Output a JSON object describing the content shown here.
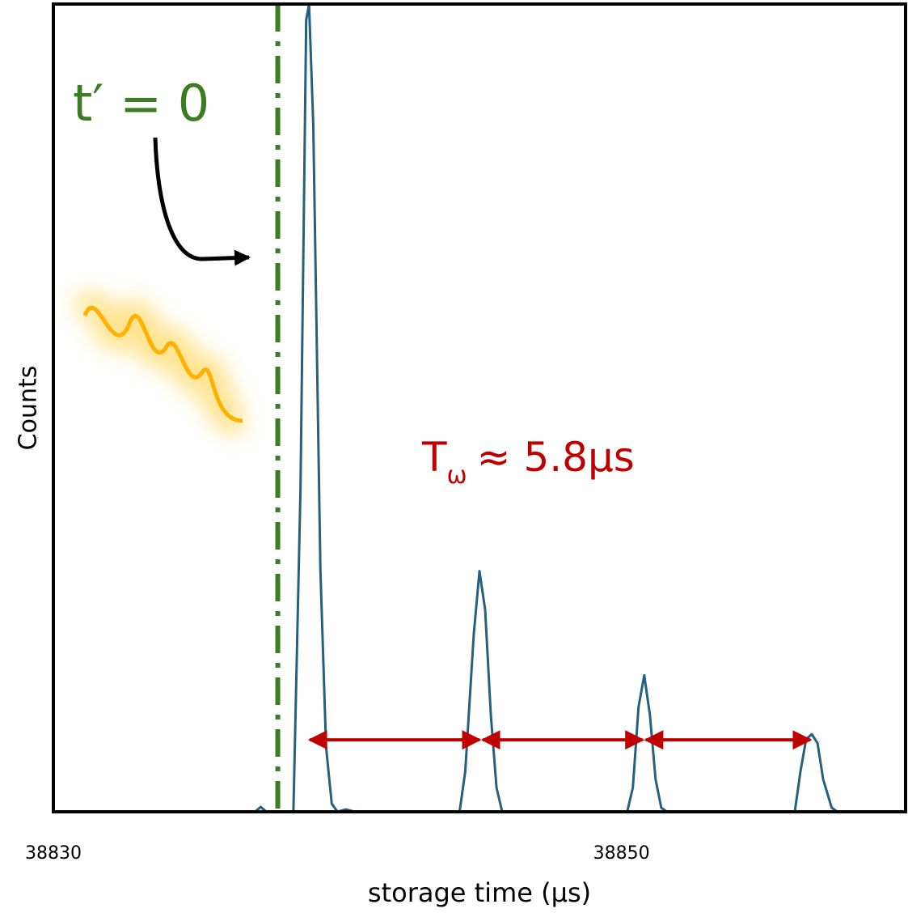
{
  "chart_data": {
    "type": "line",
    "x_label": "storage time (µs)",
    "y_label": "Counts",
    "xlim": [
      38830,
      38860
    ],
    "ylim": [
      0,
      100
    ],
    "xticks": [
      38830,
      38850
    ],
    "series": [
      {
        "color": "#24617f",
        "x": [
          38836.2,
          38837.1,
          38837.3,
          38837.5,
          38838.2,
          38838.45,
          38838.7,
          38838.9,
          38839.0,
          38839.15,
          38839.4,
          38839.6,
          38839.8,
          38840.0,
          38840.3,
          38840.6,
          38844.3,
          38844.5,
          38844.8,
          38845.0,
          38845.2,
          38845.4,
          38845.6,
          38845.8,
          38850.2,
          38850.4,
          38850.6,
          38850.8,
          38851.0,
          38851.2,
          38851.4,
          38851.6,
          38856.1,
          38856.3,
          38856.5,
          38856.7,
          38856.9,
          38857.1,
          38857.4,
          38857.6,
          38860
        ],
        "values": [
          0,
          0,
          0.6,
          0,
          0,
          0,
          40,
          98,
          100,
          85,
          30,
          8,
          1,
          0,
          0.3,
          0,
          0,
          5,
          22,
          29.8,
          25,
          12,
          3,
          0,
          0,
          3,
          13,
          16.9,
          12,
          4,
          0.5,
          0,
          0,
          5,
          9,
          9.6,
          8.5,
          4,
          0.5,
          0,
          0
        ]
      }
    ],
    "reference_line": {
      "x": 38837.9,
      "color": "#3a7d22",
      "label": "t′ = 0"
    },
    "period_arrows": {
      "color": "#c00000",
      "y": 8.9,
      "x": [
        38838.97,
        38845.06,
        38850.8,
        38856.7
      ],
      "label": "T",
      "label_subscript": "ω",
      "label_rest": "≈ 5.8µs"
    }
  }
}
